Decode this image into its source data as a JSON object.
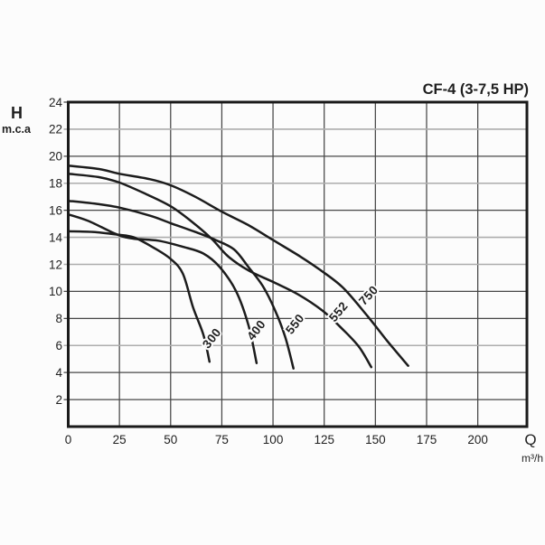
{
  "title": "CF-4 (3-7,5 HP)",
  "colors": {
    "background": "#fcfcfc",
    "border": "#1a1a1a",
    "curve": "#1c1c1c",
    "grid_dark": "#474747",
    "grid_gray": "#adadad",
    "text": "#1f1f1f"
  },
  "y_axis": {
    "symbol": "H",
    "unit": "m.c.a"
  },
  "x_axis": {
    "symbol": "Q",
    "unit": "m³/h"
  },
  "chart_data": {
    "type": "line",
    "title": "CF-4 (3-7,5 HP)",
    "xlabel": "Q",
    "xunit": "m³/h",
    "ylabel": "H",
    "yunit": "m.c.a",
    "xlim": [
      0,
      224
    ],
    "ylim": [
      0,
      24
    ],
    "xticks": [
      0,
      25,
      50,
      75,
      100,
      125,
      150,
      175,
      200
    ],
    "yticks": [
      2,
      4,
      6,
      8,
      10,
      12,
      14,
      16,
      18,
      20,
      22,
      24
    ],
    "grid": "on",
    "gray_hgridlines": [
      22,
      18,
      14,
      12,
      6
    ],
    "legend_position": "labels-on-curves",
    "series": [
      {
        "name": "750",
        "label_pos": {
          "x": 148.1,
          "y": 9.5,
          "rot": -47
        },
        "points": [
          [
            0,
            19.3
          ],
          [
            15,
            19.05
          ],
          [
            25,
            18.7
          ],
          [
            40,
            18.3
          ],
          [
            50,
            17.85
          ],
          [
            62,
            17.0
          ],
          [
            75,
            15.9
          ],
          [
            88,
            14.9
          ],
          [
            100,
            13.8
          ],
          [
            112,
            12.7
          ],
          [
            122,
            11.7
          ],
          [
            134,
            10.3
          ],
          [
            146,
            8.2
          ],
          [
            156,
            6.3
          ],
          [
            166,
            4.5
          ]
        ]
      },
      {
        "name": "552",
        "label_pos": {
          "x": 133.5,
          "y": 8.3,
          "rot": -50
        },
        "points": [
          [
            0,
            18.7
          ],
          [
            15,
            18.45
          ],
          [
            25,
            18.05
          ],
          [
            38,
            17.2
          ],
          [
            50,
            16.3
          ],
          [
            60,
            15.2
          ],
          [
            70,
            13.9
          ],
          [
            78,
            12.6
          ],
          [
            88,
            11.55
          ],
          [
            100,
            10.7
          ],
          [
            112,
            9.8
          ],
          [
            124,
            8.6
          ],
          [
            134,
            7.2
          ],
          [
            142,
            5.9
          ],
          [
            148,
            4.4
          ]
        ]
      },
      {
        "name": "550",
        "label_pos": {
          "x": 112.3,
          "y": 7.4,
          "rot": -52
        },
        "points": [
          [
            0,
            16.7
          ],
          [
            15,
            16.45
          ],
          [
            25,
            16.2
          ],
          [
            40,
            15.6
          ],
          [
            50,
            15.05
          ],
          [
            62,
            14.4
          ],
          [
            72,
            13.8
          ],
          [
            81,
            13.1
          ],
          [
            88,
            11.8
          ],
          [
            95,
            10.4
          ],
          [
            101,
            8.6
          ],
          [
            106,
            6.6
          ],
          [
            110,
            4.3
          ]
        ]
      },
      {
        "name": "400",
        "label_pos": {
          "x": 93.4,
          "y": 6.95,
          "rot": -52
        },
        "points": [
          [
            0,
            15.7
          ],
          [
            10,
            15.2
          ],
          [
            24,
            14.2
          ],
          [
            32,
            13.9
          ],
          [
            44,
            13.75
          ],
          [
            56,
            13.3
          ],
          [
            66,
            12.8
          ],
          [
            74,
            11.8
          ],
          [
            82,
            10.0
          ],
          [
            88,
            7.5
          ],
          [
            92,
            4.7
          ]
        ]
      },
      {
        "name": "300",
        "label_pos": {
          "x": 71.7,
          "y": 6.35,
          "rot": -52
        },
        "points": [
          [
            0,
            14.45
          ],
          [
            12,
            14.4
          ],
          [
            24,
            14.2
          ],
          [
            32,
            14.0
          ],
          [
            42,
            13.2
          ],
          [
            50,
            12.4
          ],
          [
            56,
            11.3
          ],
          [
            61,
            8.8
          ],
          [
            66,
            6.8
          ],
          [
            69,
            4.8
          ]
        ]
      }
    ]
  }
}
